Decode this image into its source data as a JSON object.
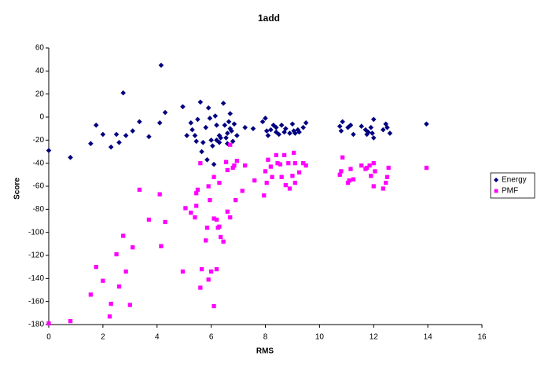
{
  "chart_data": {
    "type": "scatter",
    "title": "1add",
    "x_label": "RMS",
    "y_label": "Score",
    "xlim": [
      0,
      16
    ],
    "xticks": [
      0,
      2,
      4,
      6,
      8,
      10,
      12,
      14,
      16
    ],
    "ylim": [
      -180,
      60
    ],
    "yticks": [
      60,
      40,
      20,
      0,
      -20,
      -40,
      -60,
      -80,
      -100,
      -120,
      -140,
      -160,
      -180
    ],
    "grid": false,
    "legend": "right",
    "series": [
      {
        "name": "Energy",
        "color": "#000080",
        "marker": "diamond",
        "x": [
          0,
          0.8,
          1.55,
          1.75,
          2.0,
          2.3,
          2.5,
          2.6,
          2.75,
          2.85,
          3.1,
          3.35,
          3.7,
          4.1,
          4.15,
          4.3,
          4.95,
          5.1,
          5.25,
          5.3,
          5.4,
          5.45,
          5.5,
          5.6,
          5.7,
          5.65,
          5.8,
          5.85,
          5.9,
          5.95,
          6.0,
          6.05,
          6.1,
          6.15,
          6.2,
          6.2,
          6.3,
          6.3,
          6.35,
          6.45,
          6.5,
          6.55,
          6.6,
          6.6,
          6.65,
          6.7,
          6.7,
          6.75,
          6.8,
          6.85,
          6.95,
          7.25,
          7.55,
          7.9,
          8.0,
          8.05,
          8.1,
          8.2,
          8.3,
          8.4,
          8.4,
          8.5,
          8.6,
          8.7,
          8.75,
          8.9,
          9.0,
          9.05,
          9.1,
          9.2,
          9.25,
          9.4,
          9.5,
          10.75,
          10.8,
          10.85,
          11.05,
          11.15,
          11.25,
          11.55,
          11.7,
          11.75,
          11.8,
          11.9,
          11.95,
          12.0,
          12.0,
          12.35,
          12.45,
          12.5,
          12.6,
          13.95
        ],
        "values": [
          -29,
          -35,
          -23,
          -7,
          -15,
          -26,
          -15,
          -22,
          21,
          -16,
          -12,
          -4,
          -17,
          -5,
          45,
          4,
          9,
          -16,
          -5,
          -11,
          -16,
          -21,
          -2,
          13,
          -22,
          -30,
          -9,
          -37,
          8,
          -1,
          -20,
          -25,
          -41,
          1,
          -7,
          -20,
          -16,
          -22,
          -18,
          12,
          -7,
          -18,
          -23,
          -14,
          -4,
          3,
          -10,
          -12,
          -21,
          -6,
          -16,
          -9,
          -10,
          -4,
          -1,
          -12,
          -16,
          -11,
          -7,
          -13,
          -9,
          -15,
          -7,
          -13,
          -10,
          -14,
          -6,
          -12,
          -14,
          -11,
          -13,
          -9,
          -5,
          -8,
          -12,
          -4,
          -9,
          -7,
          -15,
          -8,
          -11,
          -15,
          -13,
          -9,
          -14,
          -2,
          -18,
          -11,
          -6,
          -9,
          -14,
          -6
        ]
      },
      {
        "name": "PMF",
        "color": "#ff00ff",
        "marker": "square",
        "x": [
          0,
          0.8,
          1.55,
          1.75,
          2.0,
          2.25,
          2.3,
          2.5,
          2.6,
          2.75,
          2.85,
          3.0,
          3.1,
          3.35,
          3.7,
          4.1,
          4.15,
          4.3,
          4.95,
          5.05,
          5.25,
          5.4,
          5.45,
          5.45,
          5.5,
          5.6,
          5.6,
          5.65,
          5.8,
          5.85,
          5.9,
          5.9,
          5.95,
          6.0,
          6.1,
          6.1,
          6.1,
          6.2,
          6.2,
          6.25,
          6.3,
          6.3,
          6.35,
          6.45,
          6.55,
          6.6,
          6.6,
          6.7,
          6.7,
          6.8,
          6.85,
          6.9,
          6.95,
          7.15,
          7.25,
          7.6,
          7.95,
          8.0,
          8.05,
          8.1,
          8.2,
          8.25,
          8.4,
          8.45,
          8.55,
          8.6,
          8.7,
          8.75,
          8.85,
          8.9,
          9.0,
          9.05,
          9.1,
          9.1,
          9.25,
          9.4,
          9.5,
          10.75,
          10.8,
          10.85,
          11.05,
          11.1,
          11.15,
          11.25,
          11.55,
          11.7,
          11.75,
          11.85,
          11.9,
          12.0,
          12.0,
          12.05,
          12.35,
          12.45,
          12.5,
          12.55,
          13.95
        ],
        "values": [
          -179,
          -177,
          -154,
          -130,
          -142,
          -173,
          -162,
          -119,
          -147,
          -103,
          -134,
          -163,
          -113,
          -63,
          -89,
          -67,
          -112,
          -91,
          -134,
          -79,
          -83,
          -87,
          -77,
          -66,
          -63,
          -40,
          -148,
          -132,
          -107,
          -96,
          -141,
          -60,
          -72,
          -134,
          -164,
          -88,
          -52,
          -89,
          -132,
          -96,
          -95,
          -57,
          -104,
          -108,
          -39,
          -46,
          -82,
          -87,
          -24,
          -44,
          -42,
          -72,
          -38,
          -64,
          -42,
          -55,
          -68,
          -47,
          -57,
          -37,
          -43,
          -52,
          -33,
          -40,
          -41,
          -52,
          -33,
          -59,
          -40,
          -62,
          -51,
          -31,
          -40,
          -57,
          -48,
          -40,
          -42,
          -50,
          -47,
          -35,
          -57,
          -55,
          -45,
          -54,
          -42,
          -45,
          -44,
          -42,
          -51,
          -60,
          -40,
          -47,
          -62,
          -57,
          -52,
          -44,
          -44
        ]
      }
    ]
  }
}
